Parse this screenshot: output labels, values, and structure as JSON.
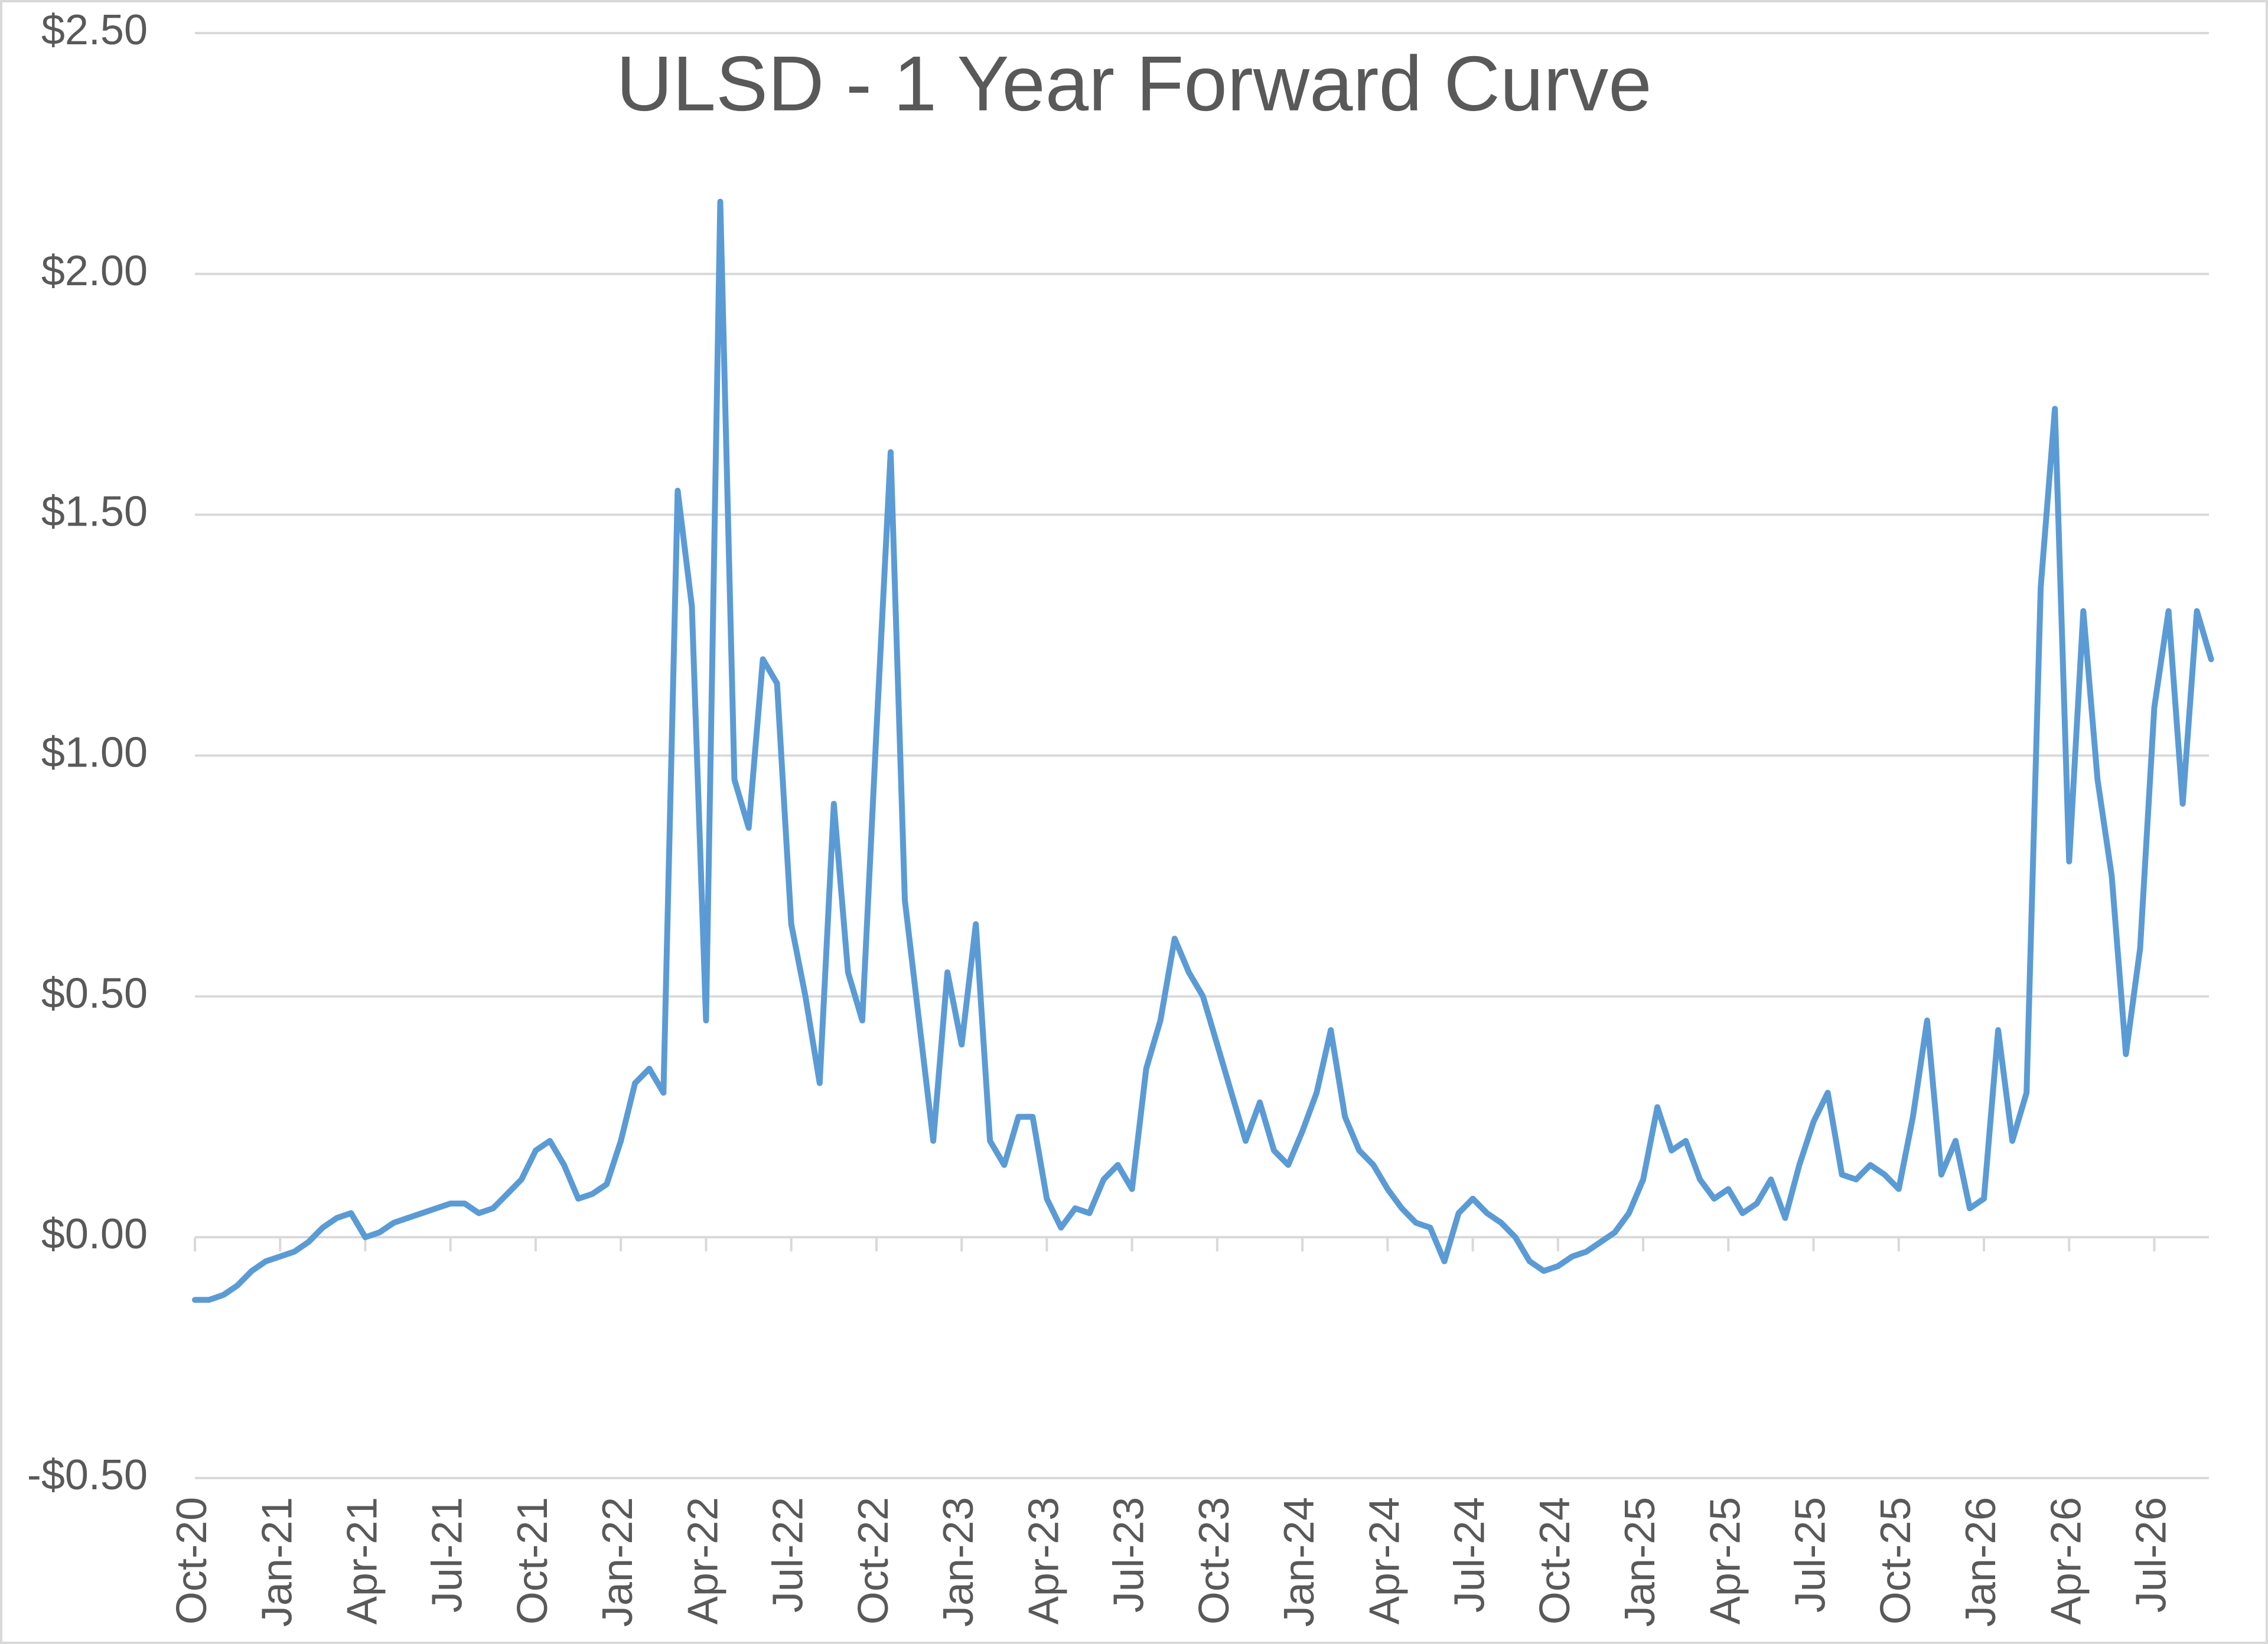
{
  "chart_data": {
    "type": "line",
    "title": "ULSD - 1 Year Forward Curve",
    "categories": [
      "Oct-20",
      null,
      null,
      null,
      null,
      null,
      "Jan-21",
      null,
      null,
      null,
      null,
      null,
      "Apr-21",
      null,
      null,
      null,
      null,
      null,
      "Jul-21",
      null,
      null,
      null,
      null,
      null,
      "Oct-21",
      null,
      null,
      null,
      null,
      null,
      "Jan-22",
      null,
      null,
      null,
      null,
      null,
      "Apr-22",
      null,
      null,
      null,
      null,
      null,
      "Jul-22",
      null,
      null,
      null,
      null,
      null,
      "Oct-22",
      null,
      null,
      null,
      null,
      null,
      "Jan-23",
      null,
      null,
      null,
      null,
      null,
      "Apr-23",
      null,
      null,
      null,
      null,
      null,
      "Jul-23",
      null,
      null,
      null,
      null,
      null,
      "Oct-23",
      null,
      null,
      null,
      null,
      null,
      "Jan-24",
      null,
      null,
      null,
      null,
      null,
      "Apr-24",
      null,
      null,
      null,
      null,
      null,
      "Jul-24",
      null,
      null,
      null,
      null,
      null,
      "Oct-24",
      null,
      null,
      null,
      null,
      null,
      "Jan-25",
      null,
      null,
      null,
      null,
      null,
      "Apr-25",
      null,
      null,
      null,
      null,
      null,
      "Jul-25",
      null,
      null,
      null,
      null,
      null,
      "Oct-25",
      null,
      null,
      null,
      null,
      null,
      "Jan-26",
      null,
      null,
      null,
      null,
      null,
      "Apr-26",
      null,
      null,
      null,
      null,
      null,
      "Jul-26",
      null,
      null,
      null,
      null
    ],
    "series": [
      {
        "color": "#5b9bd5",
        "values": [
          -0.13,
          -0.13,
          -0.12,
          -0.1,
          -0.07,
          -0.05,
          -0.04,
          -0.03,
          -0.01,
          0.02,
          0.04,
          0.05,
          0.0,
          0.01,
          0.03,
          0.04,
          0.05,
          0.06,
          0.07,
          0.07,
          0.05,
          0.06,
          0.09,
          0.12,
          0.18,
          0.2,
          0.15,
          0.08,
          0.09,
          0.11,
          0.2,
          0.32,
          0.35,
          0.3,
          1.55,
          1.31,
          0.45,
          2.15,
          0.95,
          0.85,
          1.2,
          1.15,
          0.65,
          0.5,
          0.32,
          0.9,
          0.55,
          0.45,
          1.05,
          1.63,
          0.7,
          0.45,
          0.2,
          0.55,
          0.4,
          0.65,
          0.2,
          0.15,
          0.25,
          0.25,
          0.08,
          0.02,
          0.06,
          0.05,
          0.12,
          0.15,
          0.1,
          0.35,
          0.45,
          0.62,
          0.55,
          0.5,
          0.4,
          0.3,
          0.2,
          0.28,
          0.18,
          0.15,
          0.22,
          0.3,
          0.43,
          0.25,
          0.18,
          0.15,
          0.1,
          0.06,
          0.03,
          0.02,
          -0.05,
          0.05,
          0.08,
          0.05,
          0.03,
          0.0,
          -0.05,
          -0.07,
          -0.06,
          -0.04,
          -0.03,
          -0.01,
          0.01,
          0.05,
          0.12,
          0.27,
          0.18,
          0.2,
          0.12,
          0.08,
          0.1,
          0.05,
          0.07,
          0.12,
          0.04,
          0.15,
          0.24,
          0.3,
          0.13,
          0.12,
          0.15,
          0.13,
          0.1,
          0.25,
          0.45,
          0.13,
          0.2,
          0.06,
          0.08,
          0.43,
          0.2,
          0.3,
          1.35,
          1.72,
          0.78,
          1.3,
          0.95,
          0.75,
          0.38,
          0.6,
          1.1,
          1.3,
          0.9,
          1.3,
          1.2
        ]
      }
    ],
    "ylim": [
      -0.5,
      2.5
    ],
    "yticks": [
      {
        "value": -0.5,
        "label": "-$0.50"
      },
      {
        "value": 0,
        "label": "$0.00"
      },
      {
        "value": 0.5,
        "label": "$0.50"
      },
      {
        "value": 1,
        "label": "$1.00"
      },
      {
        "value": 1.5,
        "label": "$1.50"
      },
      {
        "value": 2,
        "label": "$2.00"
      },
      {
        "value": 2.5,
        "label": "$2.50"
      }
    ],
    "grid": true
  }
}
